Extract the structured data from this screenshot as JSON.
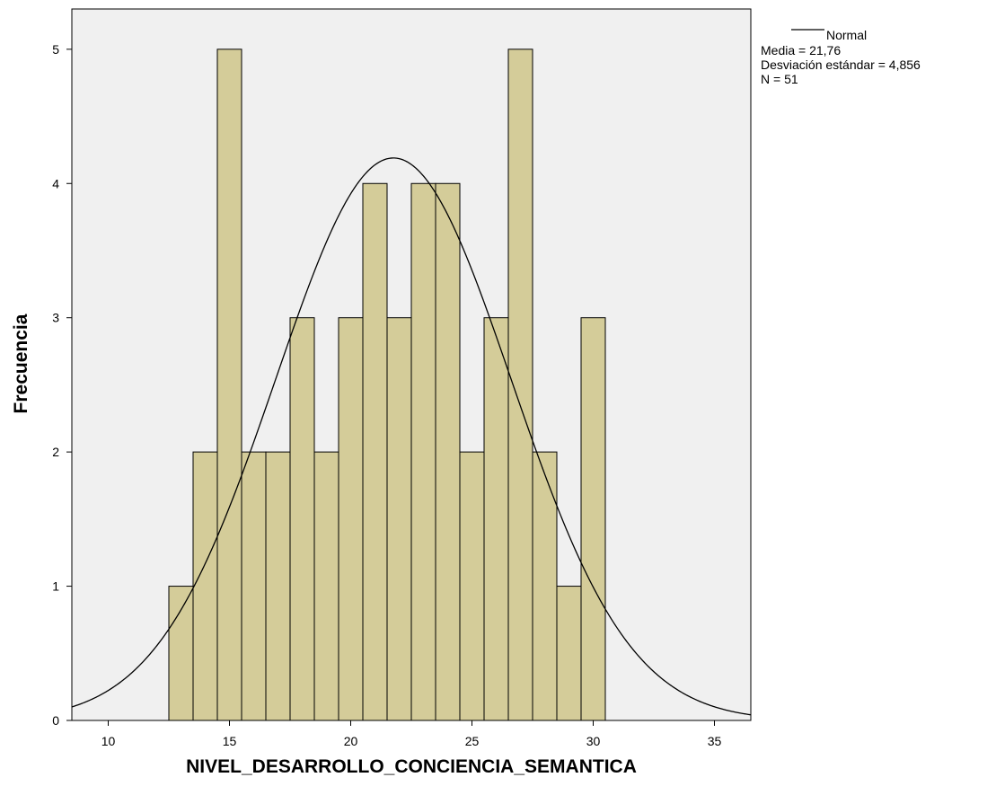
{
  "chart_data": {
    "type": "bar",
    "title": "",
    "xlabel": "NIVEL_DESARROLLO_CONCIENCIA_SEMANTICA",
    "ylabel": "Frecuencia",
    "xlim": [
      8.5,
      36.5
    ],
    "ylim": [
      0,
      5.3
    ],
    "xticks": [
      10,
      15,
      20,
      25,
      30,
      35
    ],
    "yticks": [
      0,
      1,
      2,
      3,
      4,
      5
    ],
    "bin_width": 1,
    "bins": [
      {
        "x": 13,
        "count": 1
      },
      {
        "x": 14,
        "count": 2
      },
      {
        "x": 15,
        "count": 5
      },
      {
        "x": 16,
        "count": 2
      },
      {
        "x": 17,
        "count": 2
      },
      {
        "x": 18,
        "count": 3
      },
      {
        "x": 19,
        "count": 2
      },
      {
        "x": 20,
        "count": 3
      },
      {
        "x": 21,
        "count": 4
      },
      {
        "x": 22,
        "count": 3
      },
      {
        "x": 23,
        "count": 4
      },
      {
        "x": 24,
        "count": 4
      },
      {
        "x": 25,
        "count": 2
      },
      {
        "x": 26,
        "count": 3
      },
      {
        "x": 27,
        "count": 5
      },
      {
        "x": 28,
        "count": 2
      },
      {
        "x": 29,
        "count": 1
      },
      {
        "x": 30,
        "count": 3
      }
    ],
    "normal_curve": {
      "mean": 21.76,
      "sd": 4.856,
      "n": 51
    },
    "legend": {
      "placement": "top-right",
      "series_label": "Normal",
      "lines": [
        "Media = 21,76",
        "Desviación estándar = 4,856",
        "N = 51"
      ]
    },
    "grid": false,
    "colors": {
      "bar_fill": "#d4cc99",
      "bar_stroke": "#000000",
      "plot_background": "#f0f0f0",
      "curve": "#000000"
    }
  }
}
